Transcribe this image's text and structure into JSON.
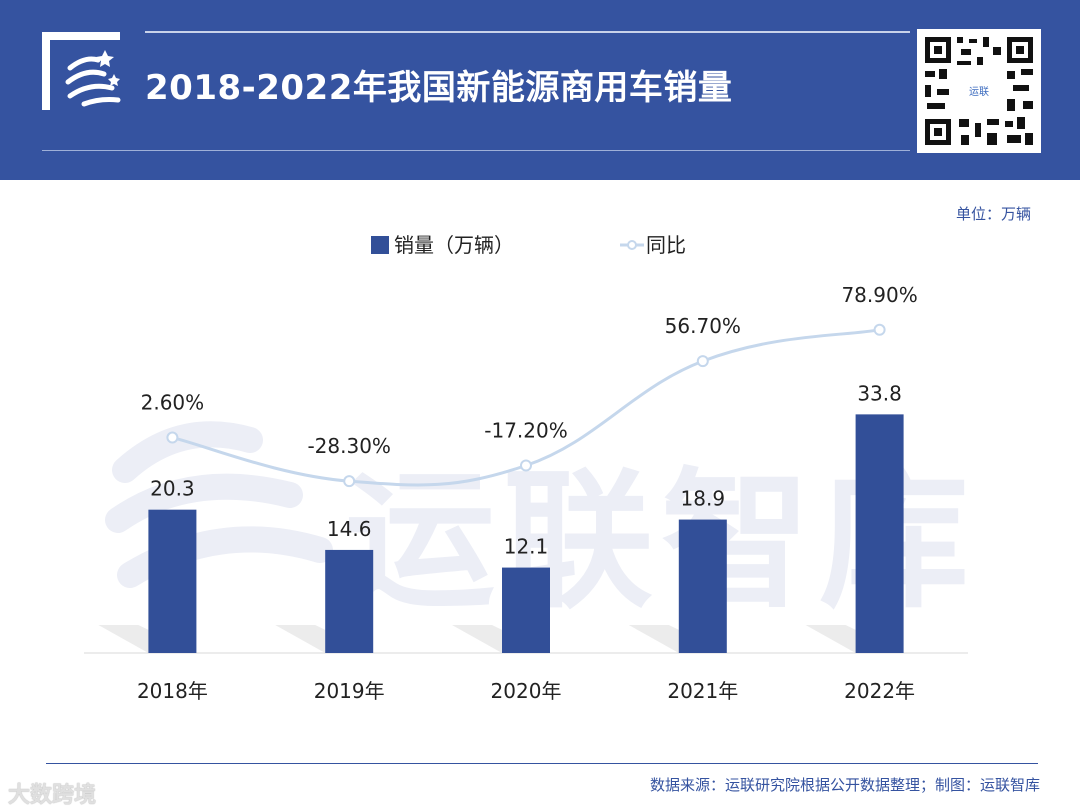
{
  "header": {
    "title": "2018-2022年我国新能源商用车销量"
  },
  "unit_label": "单位：万辆",
  "watermark": "运联智库",
  "chart_data": {
    "type": "bar",
    "title": "2018-2022年我国新能源商用车销量",
    "categories": [
      "2018年",
      "2019年",
      "2020年",
      "2021年",
      "2022年"
    ],
    "series": [
      {
        "name": "销量（万辆）",
        "type": "bar",
        "color": "#324f98",
        "values": [
          20.3,
          14.6,
          12.1,
          18.9,
          33.8
        ],
        "labels": [
          "20.3",
          "14.6",
          "12.1",
          "18.9",
          "33.8"
        ]
      },
      {
        "name": "同比",
        "type": "line",
        "color": "#c5d7ec",
        "values": [
          2.6,
          -28.3,
          -17.2,
          56.7,
          78.9
        ],
        "labels": [
          "2.60%",
          "-28.30%",
          "-17.20%",
          "56.70%",
          "78.90%"
        ]
      }
    ],
    "ylim_bar": [
      0,
      50
    ],
    "ylim_line": [
      -150,
      100
    ],
    "legend": [
      "销量（万辆）",
      "同比"
    ],
    "legend_position": "top-center"
  },
  "footer": {
    "source": "数据来源：运联研究院根据公开数据整理；制图：运联智库",
    "corner_logo": "大数跨境"
  }
}
